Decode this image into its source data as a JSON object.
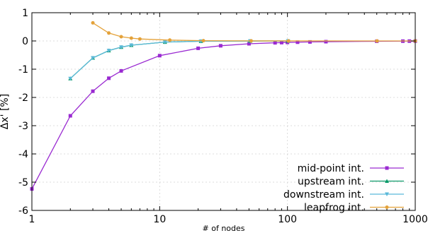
{
  "chart_data": {
    "type": "line",
    "xlabel": "# of nodes",
    "ylabel": "Δx' [%]",
    "x_scale": "log",
    "xlim": [
      1,
      1000
    ],
    "ylim": [
      -6,
      1
    ],
    "x_ticks": [
      1,
      10,
      100,
      1000
    ],
    "x_tick_labels": [
      "1",
      "10",
      "100",
      "1000"
    ],
    "y_ticks": [
      -6,
      -5,
      -4,
      -3,
      -2,
      -1,
      0,
      1
    ],
    "y_tick_labels": [
      "-6",
      "-5",
      "-4",
      "-3",
      "-2",
      "-1",
      "0",
      "1"
    ],
    "grid": true,
    "legend_position": "bottom-right",
    "series": [
      {
        "name": "mid-point int.",
        "color": "#9a2ad1",
        "marker": "square",
        "x": [
          1,
          2,
          3,
          4,
          5,
          10,
          20,
          30,
          50,
          80,
          90,
          100,
          120,
          150,
          200,
          500,
          800,
          900,
          1000
        ],
        "y": [
          -5.24,
          -2.65,
          -1.78,
          -1.32,
          -1.06,
          -0.52,
          -0.26,
          -0.17,
          -0.1,
          -0.065,
          -0.058,
          -0.052,
          -0.044,
          -0.035,
          -0.026,
          -0.011,
          -0.007,
          -0.006,
          -0.005
        ]
      },
      {
        "name": "upstream int.",
        "color": "#0e9b6b",
        "marker": "triangle",
        "x": [
          2,
          3,
          4,
          5,
          6,
          11,
          21,
          51,
          101
        ],
        "y": [
          -1.33,
          -0.6,
          -0.34,
          -0.22,
          -0.15,
          -0.04,
          -0.01,
          -0.002,
          0
        ]
      },
      {
        "name": "downstream int.",
        "color": "#5bb9d9",
        "marker": "triangle-down",
        "x": [
          2,
          3,
          4,
          5,
          6,
          11,
          21,
          51,
          101
        ],
        "y": [
          -1.33,
          -0.6,
          -0.34,
          -0.22,
          -0.15,
          -0.04,
          -0.01,
          -0.002,
          0
        ]
      },
      {
        "name": "leapfrog int.",
        "color": "#e4a23a",
        "marker": "circle",
        "x": [
          3,
          4,
          5,
          6,
          7,
          12,
          22,
          52,
          102,
          502,
          1000
        ],
        "y": [
          0.64,
          0.28,
          0.15,
          0.1,
          0.07,
          0.03,
          0.01,
          0.003,
          0.001,
          0,
          0
        ]
      }
    ]
  }
}
